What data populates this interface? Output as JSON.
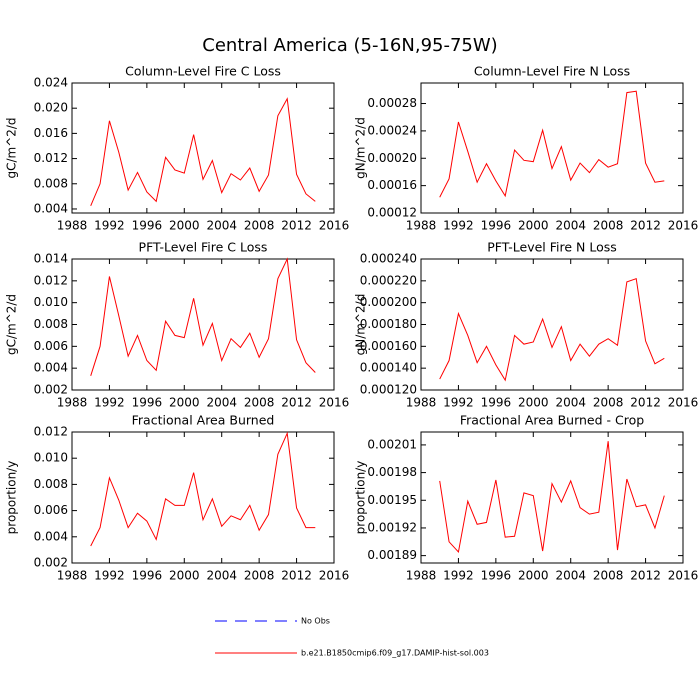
{
  "title": "Central America (5-16N,95-75W)",
  "legend": [
    {
      "name": "No Obs",
      "color": "#0000ff",
      "dashed": true
    },
    {
      "name": "b.e21.B1850cmip6.f09_g17.DAMIP-hist-sol.003",
      "color": "#ff0000",
      "dashed": false
    }
  ],
  "chart_data": [
    {
      "type": "line",
      "title": "Column-Level Fire C Loss",
      "y_label": "gC/m^2/d",
      "x": [
        1990,
        1991,
        1992,
        1993,
        1994,
        1995,
        1996,
        1997,
        1998,
        1999,
        2000,
        2001,
        2002,
        2003,
        2004,
        2005,
        2006,
        2007,
        2008,
        2009,
        2010,
        2011,
        2012,
        2013,
        2014
      ],
      "series": [
        {
          "color": "#ff0000",
          "values": [
            0.0045,
            0.008,
            0.018,
            0.013,
            0.007,
            0.0098,
            0.0067,
            0.0052,
            0.0122,
            0.0102,
            0.0097,
            0.0158,
            0.0087,
            0.0117,
            0.0066,
            0.0096,
            0.0086,
            0.0105,
            0.0068,
            0.0094,
            0.0188,
            0.0215,
            0.0095,
            0.0064,
            0.0052
          ]
        }
      ],
      "xlim": [
        1988,
        2016
      ],
      "xticks": [
        1988,
        1992,
        1996,
        2000,
        2004,
        2008,
        2012,
        2016
      ],
      "ylim": [
        0.00336,
        0.024
      ],
      "yticks": [
        0.004,
        0.008,
        0.012,
        0.016,
        {
          "value": 0.02,
          "label": "0.020"
        },
        0.024
      ]
    },
    {
      "type": "line",
      "title": "Column-Level Fire N Loss",
      "y_label": "gN/m^2/d",
      "x": [
        1990,
        1991,
        1992,
        1993,
        1994,
        1995,
        1996,
        1997,
        1998,
        1999,
        2000,
        2001,
        2002,
        2003,
        2004,
        2005,
        2006,
        2007,
        2008,
        2009,
        2010,
        2011,
        2012,
        2013,
        2014
      ],
      "series": [
        {
          "color": "#ff0000",
          "values": [
            0.000143,
            0.00017,
            0.000253,
            0.00021,
            0.000165,
            0.000192,
            0.000167,
            0.000145,
            0.000212,
            0.000197,
            0.000195,
            0.000241,
            0.000185,
            0.000217,
            0.000168,
            0.000193,
            0.000179,
            0.000198,
            0.000187,
            0.000192,
            0.000296,
            0.000298,
            0.000193,
            0.000165,
            0.000167
          ]
        }
      ],
      "xlim": [
        1988,
        2016
      ],
      "xticks": [
        1988,
        1992,
        1996,
        2000,
        2004,
        2008,
        2012,
        2016
      ],
      "ylim": [
        0.00012,
        0.00031
      ],
      "yticks": [
        0.00012,
        0.00016,
        {
          "value": 0.0002,
          "label": "0.00020"
        },
        0.00024,
        0.00028
      ]
    },
    {
      "type": "line",
      "title": "PFT-Level Fire C Loss",
      "y_label": "gC/m^2/d",
      "x": [
        1990,
        1991,
        1992,
        1993,
        1994,
        1995,
        1996,
        1997,
        1998,
        1999,
        2000,
        2001,
        2002,
        2003,
        2004,
        2005,
        2006,
        2007,
        2008,
        2009,
        2010,
        2011,
        2012,
        2013,
        2014
      ],
      "series": [
        {
          "color": "#ff0000",
          "values": [
            0.0033,
            0.006,
            0.0124,
            0.0088,
            0.0051,
            0.007,
            0.0047,
            0.0038,
            0.0083,
            0.007,
            0.0068,
            0.0104,
            0.0061,
            0.0081,
            0.0047,
            0.0067,
            0.0059,
            0.0072,
            0.005,
            0.0067,
            0.0122,
            0.014,
            0.0066,
            0.0045,
            0.0036
          ]
        }
      ],
      "xlim": [
        1988,
        2016
      ],
      "xticks": [
        1988,
        1992,
        1996,
        2000,
        2004,
        2008,
        2012,
        2016
      ],
      "ylim": [
        0.002,
        0.014
      ],
      "yticks": [
        0.002,
        0.004,
        0.006,
        0.008,
        {
          "value": 0.01,
          "label": "0.010"
        },
        0.012,
        0.014
      ]
    },
    {
      "type": "line",
      "title": "PFT-Level Fire N Loss",
      "y_label": "gN/m^2/d",
      "x": [
        1990,
        1991,
        1992,
        1993,
        1994,
        1995,
        1996,
        1997,
        1998,
        1999,
        2000,
        2001,
        2002,
        2003,
        2004,
        2005,
        2006,
        2007,
        2008,
        2009,
        2010,
        2011,
        2012,
        2013,
        2014
      ],
      "series": [
        {
          "color": "#ff0000",
          "values": [
            0.00013,
            0.000147,
            0.00019,
            0.00017,
            0.000145,
            0.00016,
            0.000143,
            0.000129,
            0.00017,
            0.000162,
            0.000164,
            0.000185,
            0.000159,
            0.000178,
            0.000147,
            0.000162,
            0.000151,
            0.000162,
            0.000167,
            0.000161,
            0.000219,
            0.000222,
            0.000165,
            0.000144,
            0.000149
          ]
        }
      ],
      "xlim": [
        1988,
        2016
      ],
      "xticks": [
        1988,
        1992,
        1996,
        2000,
        2004,
        2008,
        2012,
        2016
      ],
      "ylim": [
        0.00012,
        0.00024
      ],
      "yticks": [
        {
          "value": 0.00012,
          "label": "0.000120"
        },
        {
          "value": 0.00014,
          "label": "0.000140"
        },
        {
          "value": 0.00016,
          "label": "0.000160"
        },
        {
          "value": 0.00018,
          "label": "0.000180"
        },
        {
          "value": 0.0002,
          "label": "0.000200"
        },
        {
          "value": 0.00022,
          "label": "0.000220"
        },
        {
          "value": 0.00024,
          "label": "0.000240"
        }
      ]
    },
    {
      "type": "line",
      "title": "Fractional Area Burned",
      "y_label": "proportion/y",
      "x": [
        1990,
        1991,
        1992,
        1993,
        1994,
        1995,
        1996,
        1997,
        1998,
        1999,
        2000,
        2001,
        2002,
        2003,
        2004,
        2005,
        2006,
        2007,
        2008,
        2009,
        2010,
        2011,
        2012,
        2013,
        2014
      ],
      "series": [
        {
          "color": "#ff0000",
          "values": [
            0.0033,
            0.0047,
            0.0085,
            0.0068,
            0.0047,
            0.0058,
            0.0052,
            0.0038,
            0.0069,
            0.0064,
            0.0064,
            0.0089,
            0.0053,
            0.0069,
            0.0048,
            0.0056,
            0.0053,
            0.0064,
            0.0045,
            0.0057,
            0.0103,
            0.0119,
            0.0062,
            0.0047,
            0.0047
          ]
        }
      ],
      "xlim": [
        1988,
        2016
      ],
      "xticks": [
        1988,
        1992,
        1996,
        2000,
        2004,
        2008,
        2012,
        2016
      ],
      "ylim": [
        0.002,
        0.012
      ],
      "yticks": [
        0.002,
        0.004,
        0.006,
        0.008,
        {
          "value": 0.01,
          "label": "0.010"
        },
        0.012
      ]
    },
    {
      "type": "line",
      "title": "Fractional Area Burned - Crop",
      "y_label": "proportion/y",
      "x": [
        1990,
        1991,
        1992,
        1993,
        1994,
        1995,
        1996,
        1997,
        1998,
        1999,
        2000,
        2001,
        2002,
        2003,
        2004,
        2005,
        2006,
        2007,
        2008,
        2009,
        2010,
        2011,
        2012,
        2013,
        2014
      ],
      "series": [
        {
          "color": "#ff0000",
          "values": [
            0.001971,
            0.001905,
            0.001894,
            0.001949,
            0.001924,
            0.001926,
            0.001972,
            0.00191,
            0.001911,
            0.001958,
            0.001955,
            0.001895,
            0.001968,
            0.001948,
            0.001971,
            0.001942,
            0.001935,
            0.001937,
            0.002014,
            0.001896,
            0.001973,
            0.001943,
            0.001945,
            0.00192,
            0.001955
          ]
        }
      ],
      "xlim": [
        1988,
        2016
      ],
      "xticks": [
        1988,
        1992,
        1996,
        2000,
        2004,
        2008,
        2012,
        2016
      ],
      "ylim": [
        0.001882,
        0.002024
      ],
      "yticks": [
        0.00189,
        0.00192,
        0.00195,
        0.00198,
        0.00201
      ]
    }
  ]
}
